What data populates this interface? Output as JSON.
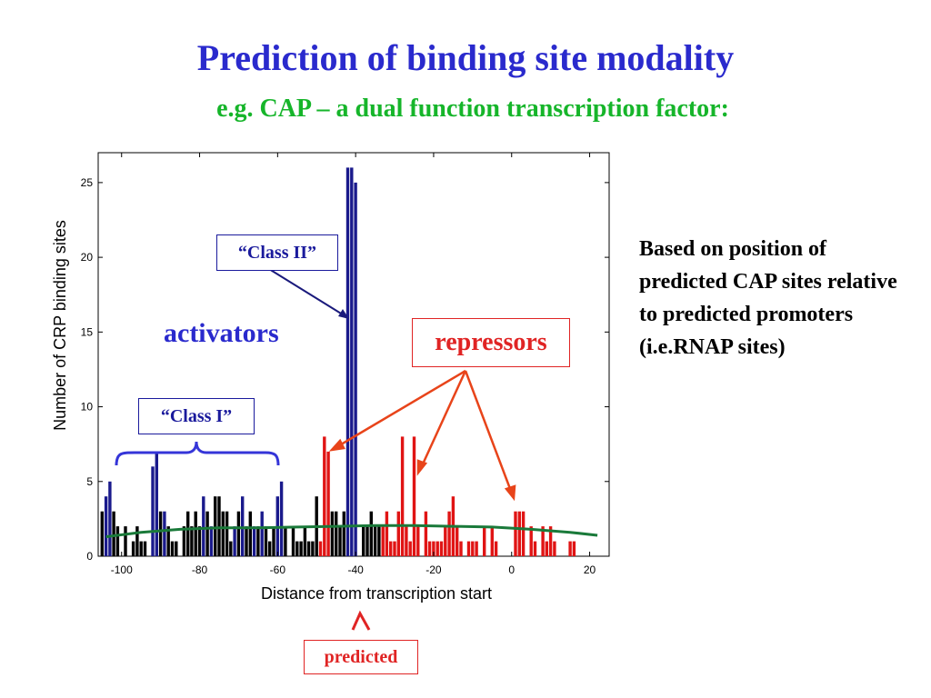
{
  "slide": {
    "title": "Prediction of binding site modality",
    "subtitle": "e.g. CAP – a dual function transcription factor:",
    "side_note": "Based on position of predicted CAP sites relative to predicted promoters (i.e.RNAP sites)"
  },
  "annotations": {
    "class_ii": "“Class II”",
    "class_i": "“Class I”",
    "activators": "activators",
    "repressors": "repressors",
    "predicted": "predicted"
  },
  "colors": {
    "title": "#2a2acd",
    "subtitle": "#16b52a",
    "activator_bars": "#1a1a8c",
    "neutral_bars": "#000000",
    "repressor_bars": "#e01414",
    "trend_line": "#1a7a3a",
    "repressor_arrows": "#e8441a"
  },
  "chart_data": {
    "type": "bar",
    "xlabel": "Distance from transcription start",
    "ylabel": "Number of CRP binding sites",
    "xlim": [
      -106,
      25
    ],
    "ylim": [
      0,
      27
    ],
    "xticks": [
      -100,
      -80,
      -60,
      -40,
      -20,
      0,
      20
    ],
    "yticks": [
      0,
      5,
      10,
      15,
      20,
      25
    ],
    "series": [
      {
        "group": "activators",
        "points": [
          [
            -104,
            4
          ],
          [
            -103,
            5
          ],
          [
            -92,
            6
          ],
          [
            -91,
            7
          ],
          [
            -89,
            3
          ],
          [
            -79,
            4
          ],
          [
            -77,
            2
          ],
          [
            -71,
            2
          ],
          [
            -69,
            4
          ],
          [
            -66,
            2
          ],
          [
            -64,
            3
          ],
          [
            -60,
            4
          ],
          [
            -59,
            5
          ],
          [
            -42,
            26
          ],
          [
            -41,
            26
          ],
          [
            -40,
            25
          ]
        ]
      },
      {
        "group": "neutral",
        "points": [
          [
            -105,
            3
          ],
          [
            -102,
            3
          ],
          [
            -101,
            2
          ],
          [
            -99,
            2
          ],
          [
            -97,
            1
          ],
          [
            -96,
            2
          ],
          [
            -95,
            1
          ],
          [
            -94,
            1
          ],
          [
            -90,
            3
          ],
          [
            -88,
            2
          ],
          [
            -87,
            1
          ],
          [
            -86,
            1
          ],
          [
            -84,
            2
          ],
          [
            -83,
            3
          ],
          [
            -82,
            2
          ],
          [
            -81,
            3
          ],
          [
            -80,
            2
          ],
          [
            -78,
            3
          ],
          [
            -76,
            4
          ],
          [
            -75,
            4
          ],
          [
            -74,
            3
          ],
          [
            -73,
            3
          ],
          [
            -72,
            1
          ],
          [
            -70,
            3
          ],
          [
            -68,
            2
          ],
          [
            -67,
            3
          ],
          [
            -65,
            2
          ],
          [
            -63,
            2
          ],
          [
            -62,
            1
          ],
          [
            -61,
            2
          ],
          [
            -58,
            2
          ],
          [
            -56,
            2
          ],
          [
            -55,
            1
          ],
          [
            -54,
            1
          ],
          [
            -53,
            2
          ],
          [
            -52,
            1
          ],
          [
            -51,
            1
          ],
          [
            -50,
            4
          ],
          [
            -46,
            3
          ],
          [
            -45,
            3
          ],
          [
            -44,
            2
          ],
          [
            -43,
            3
          ],
          [
            -38,
            2
          ],
          [
            -37,
            2
          ],
          [
            -36,
            3
          ],
          [
            -35,
            2
          ],
          [
            -34,
            2
          ]
        ]
      },
      {
        "group": "repressors",
        "points": [
          [
            -49,
            1
          ],
          [
            -48,
            8
          ],
          [
            -47,
            7
          ],
          [
            -33,
            2
          ],
          [
            -32,
            3
          ],
          [
            -31,
            1
          ],
          [
            -30,
            1
          ],
          [
            -29,
            3
          ],
          [
            -28,
            8
          ],
          [
            -27,
            2
          ],
          [
            -26,
            1
          ],
          [
            -25,
            8
          ],
          [
            -24,
            2
          ],
          [
            -22,
            3
          ],
          [
            -21,
            1
          ],
          [
            -20,
            1
          ],
          [
            -19,
            1
          ],
          [
            -18,
            1
          ],
          [
            -17,
            2
          ],
          [
            -16,
            3
          ],
          [
            -15,
            4
          ],
          [
            -14,
            2
          ],
          [
            -13,
            1
          ],
          [
            -11,
            1
          ],
          [
            -10,
            1
          ],
          [
            -9,
            1
          ],
          [
            -7,
            2
          ],
          [
            -5,
            2
          ],
          [
            -4,
            1
          ],
          [
            1,
            3
          ],
          [
            2,
            3
          ],
          [
            3,
            3
          ],
          [
            5,
            2
          ],
          [
            6,
            1
          ],
          [
            8,
            2
          ],
          [
            9,
            1
          ],
          [
            10,
            2
          ],
          [
            11,
            1
          ],
          [
            15,
            1
          ],
          [
            16,
            1
          ]
        ]
      }
    ],
    "trend_line": {
      "x": [
        -104,
        -95,
        -85,
        -75,
        -65,
        -55,
        -45,
        -35,
        -25,
        -15,
        -5,
        5,
        15,
        22
      ],
      "y": [
        1.3,
        1.6,
        1.8,
        1.9,
        1.9,
        1.95,
        2.0,
        2.05,
        2.05,
        2.0,
        1.95,
        1.8,
        1.6,
        1.4
      ]
    }
  }
}
